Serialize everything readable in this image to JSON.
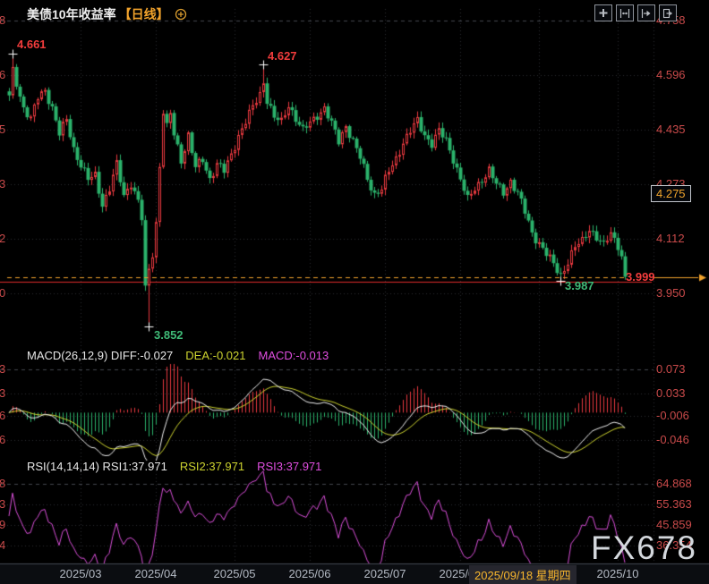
{
  "ui": {
    "title": "美债10年收益率",
    "period": "【日线】",
    "main_ticks": [
      "4.758",
      "4.596",
      "4.435",
      "4.273",
      "4.112",
      "3.950"
    ],
    "macd_ticks": [
      "0.073",
      "0.033",
      "-0.006",
      "-0.046"
    ],
    "rsi_ticks": [
      "64.868",
      "55.363",
      "45.859",
      "36.354"
    ],
    "current_price": "3.999",
    "price_badge": "4.275",
    "annotations": {
      "high1": "4.661",
      "low1": "3.852",
      "high2": "4.627",
      "low2": "3.987"
    },
    "macd_header": {
      "main": "MACD(26,12,9) DIFF:-0.027",
      "dea": "DEA:-0.021",
      "bar": "MACD:-0.013"
    },
    "rsi_header": {
      "main": "RSI(14,14,14) RSI1:37.971",
      "rsi2": "RSI2:37.971",
      "rsi3": "RSI3:37.971"
    },
    "watermark": "FX678",
    "toolbar_buttons": [
      "pan-tool",
      "fit-horizontal",
      "scroll-forward",
      "jump-to-latest"
    ],
    "colors": {
      "up": "#e8393f",
      "down": "#2bb26b",
      "diff_line": "#efefef",
      "dea_line": "#cdd32f",
      "rsi_line": "#d94fd9",
      "orange": "#f2a32c",
      "axis_red": "#c94a4a",
      "grid": "#2b2e33",
      "grid_dash": "#43464d",
      "date_bar_bg": "#0b0d11",
      "date_bar_line": "#454a52",
      "support_red": "#e02b2b",
      "cross_white": "#ffffff"
    }
  },
  "chart_data": {
    "type": "candlestick_with_indicators",
    "title": "美债10年收益率 日线",
    "y_axis": {
      "ticks": [
        4.758,
        4.596,
        4.435,
        4.273,
        4.112,
        3.95
      ]
    },
    "current_price": 3.999,
    "red_support_line": 3.984,
    "crosshair_price_badge": 4.275,
    "candles": {
      "count": 173,
      "keyframes": [
        [
          0,
          4.53
        ],
        [
          1,
          4.61
        ],
        [
          2,
          4.575
        ],
        [
          4,
          4.5
        ],
        [
          6,
          4.465
        ],
        [
          8,
          4.53
        ],
        [
          10,
          4.555
        ],
        [
          12,
          4.5
        ],
        [
          14,
          4.42
        ],
        [
          16,
          4.465
        ],
        [
          18,
          4.38
        ],
        [
          20,
          4.33
        ],
        [
          22,
          4.285
        ],
        [
          24,
          4.3
        ],
        [
          26,
          4.215
        ],
        [
          28,
          4.26
        ],
        [
          30,
          4.33
        ],
        [
          32,
          4.24
        ],
        [
          34,
          4.28
        ],
        [
          36,
          4.22
        ],
        [
          37,
          4.17
        ],
        [
          38,
          3.96
        ],
        [
          39,
          4.02
        ],
        [
          40,
          4.07
        ],
        [
          41,
          4.16
        ],
        [
          42,
          4.33
        ],
        [
          43,
          4.49
        ],
        [
          44,
          4.44
        ],
        [
          45,
          4.48
        ],
        [
          46,
          4.42
        ],
        [
          48,
          4.345
        ],
        [
          50,
          4.42
        ],
        [
          52,
          4.32
        ],
        [
          54,
          4.345
        ],
        [
          56,
          4.29
        ],
        [
          58,
          4.335
        ],
        [
          60,
          4.31
        ],
        [
          62,
          4.36
        ],
        [
          64,
          4.42
        ],
        [
          66,
          4.46
        ],
        [
          68,
          4.5
        ],
        [
          70,
          4.54
        ],
        [
          71,
          4.58
        ],
        [
          72,
          4.525
        ],
        [
          74,
          4.47
        ],
        [
          76,
          4.455
        ],
        [
          78,
          4.51
        ],
        [
          80,
          4.47
        ],
        [
          82,
          4.43
        ],
        [
          84,
          4.455
        ],
        [
          86,
          4.48
        ],
        [
          88,
          4.5
        ],
        [
          90,
          4.45
        ],
        [
          92,
          4.4
        ],
        [
          94,
          4.45
        ],
        [
          96,
          4.4
        ],
        [
          98,
          4.35
        ],
        [
          100,
          4.29
        ],
        [
          102,
          4.245
        ],
        [
          104,
          4.26
        ],
        [
          106,
          4.31
        ],
        [
          108,
          4.35
        ],
        [
          110,
          4.4
        ],
        [
          112,
          4.43
        ],
        [
          114,
          4.46
        ],
        [
          116,
          4.42
        ],
        [
          118,
          4.395
        ],
        [
          120,
          4.43
        ],
        [
          122,
          4.4
        ],
        [
          124,
          4.35
        ],
        [
          126,
          4.29
        ],
        [
          128,
          4.225
        ],
        [
          130,
          4.26
        ],
        [
          132,
          4.29
        ],
        [
          134,
          4.315
        ],
        [
          136,
          4.27
        ],
        [
          138,
          4.25
        ],
        [
          140,
          4.285
        ],
        [
          142,
          4.245
        ],
        [
          144,
          4.19
        ],
        [
          146,
          4.13
        ],
        [
          148,
          4.1
        ],
        [
          150,
          4.065
        ],
        [
          152,
          4.035
        ],
        [
          154,
          4.005
        ],
        [
          156,
          4.045
        ],
        [
          158,
          4.085
        ],
        [
          160,
          4.105
        ],
        [
          162,
          4.145
        ],
        [
          164,
          4.115
        ],
        [
          166,
          4.09
        ],
        [
          168,
          4.13
        ],
        [
          170,
          4.095
        ],
        [
          171,
          4.06
        ],
        [
          172,
          3.999
        ]
      ],
      "noise": {
        "a1": 0.01,
        "f1": 2.17,
        "a2": 0.007,
        "f2": 0.83,
        "p2": 2.0
      }
    },
    "extremes": [
      {
        "index": 1,
        "kind": "high",
        "value": 4.661
      },
      {
        "index": 39,
        "kind": "low",
        "value": 3.852
      },
      {
        "index": 71,
        "kind": "high",
        "value": 4.627
      },
      {
        "index": 154,
        "kind": "low",
        "value": 3.987
      }
    ],
    "x_ticks": [
      {
        "label": "2025/03",
        "index": 20
      },
      {
        "label": "2025/04",
        "index": 41
      },
      {
        "label": "2025/05",
        "index": 63
      },
      {
        "label": "2025/06",
        "index": 84
      },
      {
        "label": "2025/07",
        "index": 105
      },
      {
        "label": "2025/08",
        "index": 126
      },
      {
        "label": "2025/10",
        "index": 170
      }
    ],
    "grid_month_indices": [
      20,
      41,
      63,
      84,
      105,
      126,
      148,
      170
    ],
    "selected_date": {
      "label": "2025/09/18 星期四",
      "index": 142
    },
    "macd": {
      "params": [
        26,
        12,
        9
      ],
      "diff": -0.027,
      "dea": -0.021,
      "macd": -0.013,
      "ticks": [
        0.073,
        0.033,
        -0.006,
        -0.046
      ]
    },
    "rsi": {
      "params": [
        14,
        14,
        14
      ],
      "rsi1": 37.971,
      "rsi2": 37.971,
      "rsi3": 37.971,
      "ticks": [
        64.868,
        55.363,
        45.859,
        36.354
      ]
    }
  }
}
